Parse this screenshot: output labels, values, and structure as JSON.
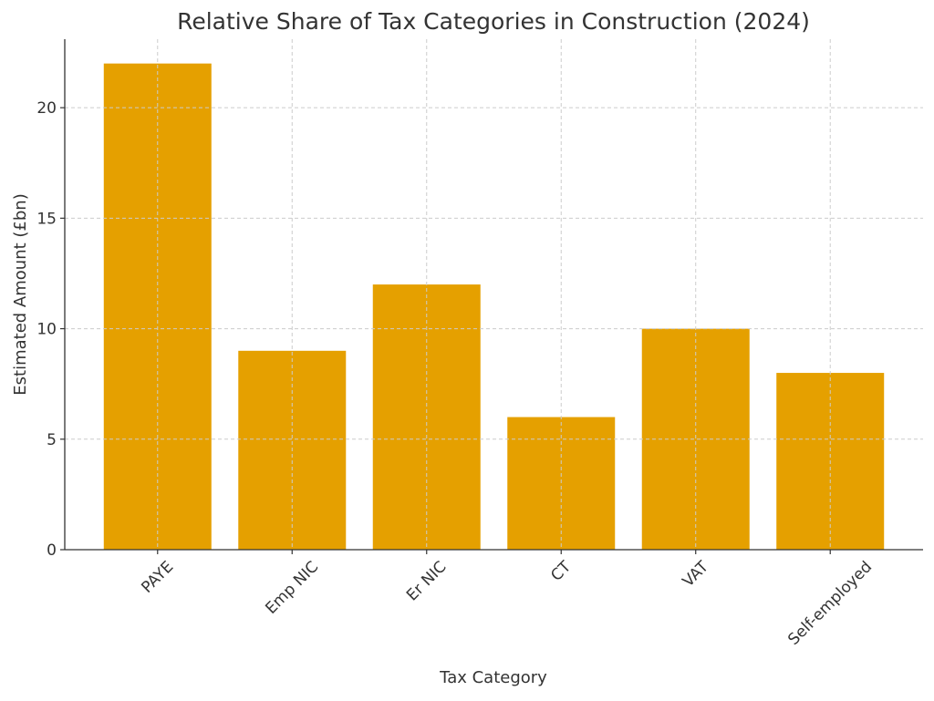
{
  "chart_data": {
    "type": "bar",
    "title": "Relative Share of Tax Categories in Construction (2024)",
    "xlabel": "Tax Category",
    "ylabel": "Estimated Amount (£bn)",
    "categories": [
      "PAYE",
      "Emp NIC",
      "Er NIC",
      "CT",
      "VAT",
      "Self-employed"
    ],
    "values": [
      22,
      9,
      12,
      6,
      10,
      8
    ],
    "ylim": [
      0,
      23.1
    ],
    "yticks": [
      0,
      5,
      10,
      15,
      20
    ],
    "grid": true,
    "bar_color": "#E5A000",
    "xtick_rotation_deg": 45
  }
}
